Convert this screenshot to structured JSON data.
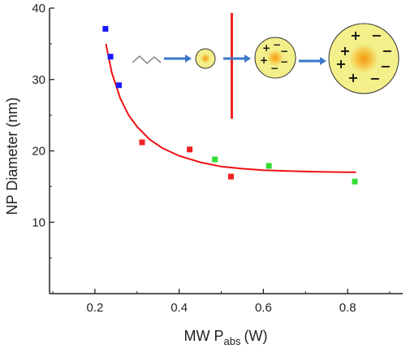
{
  "chart_data": {
    "type": "scatter",
    "xlabel": "MW P",
    "xlabel_sub": "abs",
    "xlabel_unit": "(W)",
    "ylabel": "NP Diameter (nm)",
    "xlim": [
      0.1,
      0.9
    ],
    "ylim": [
      0,
      40
    ],
    "x_ticks": [
      0.2,
      0.4,
      0.6,
      0.8
    ],
    "x_tick_labels": [
      "0.2",
      "0.4",
      "0.6",
      "0.8"
    ],
    "y_ticks": [
      10,
      20,
      30,
      40
    ],
    "y_tick_labels": [
      "10",
      "20",
      "30",
      "40"
    ],
    "grid": false,
    "series": [
      {
        "color": "#1a1aff",
        "points": [
          [
            0.225,
            37.1
          ],
          [
            0.237,
            33.2
          ],
          [
            0.257,
            29.2
          ]
        ]
      },
      {
        "color": "#ee2222",
        "points": [
          [
            0.312,
            21.2
          ],
          [
            0.425,
            20.2
          ],
          [
            0.523,
            16.4
          ]
        ]
      },
      {
        "color": "#33dd33",
        "points": [
          [
            0.485,
            18.8
          ],
          [
            0.613,
            17.9
          ],
          [
            0.817,
            15.7
          ]
        ]
      }
    ],
    "fit": {
      "color": "#ee1111",
      "points": [
        [
          0.226,
          35.0
        ],
        [
          0.24,
          31.0
        ],
        [
          0.26,
          27.4
        ],
        [
          0.28,
          25.0
        ],
        [
          0.3,
          23.4
        ],
        [
          0.33,
          21.6
        ],
        [
          0.36,
          20.4
        ],
        [
          0.4,
          19.3
        ],
        [
          0.45,
          18.4
        ],
        [
          0.5,
          17.8
        ],
        [
          0.55,
          17.5
        ],
        [
          0.6,
          17.3
        ],
        [
          0.65,
          17.2
        ],
        [
          0.7,
          17.1
        ],
        [
          0.75,
          17.05
        ],
        [
          0.8,
          17.0
        ],
        [
          0.82,
          17.0
        ]
      ]
    },
    "divider_x": 0.525,
    "divider_color": "#ee2222"
  },
  "inset": {
    "arrow_color": "#3a78c8",
    "particle_fill": "#f3ef8a",
    "particle_core": "#f3a81e",
    "plus_sign": "+",
    "minus_sign": "−"
  }
}
